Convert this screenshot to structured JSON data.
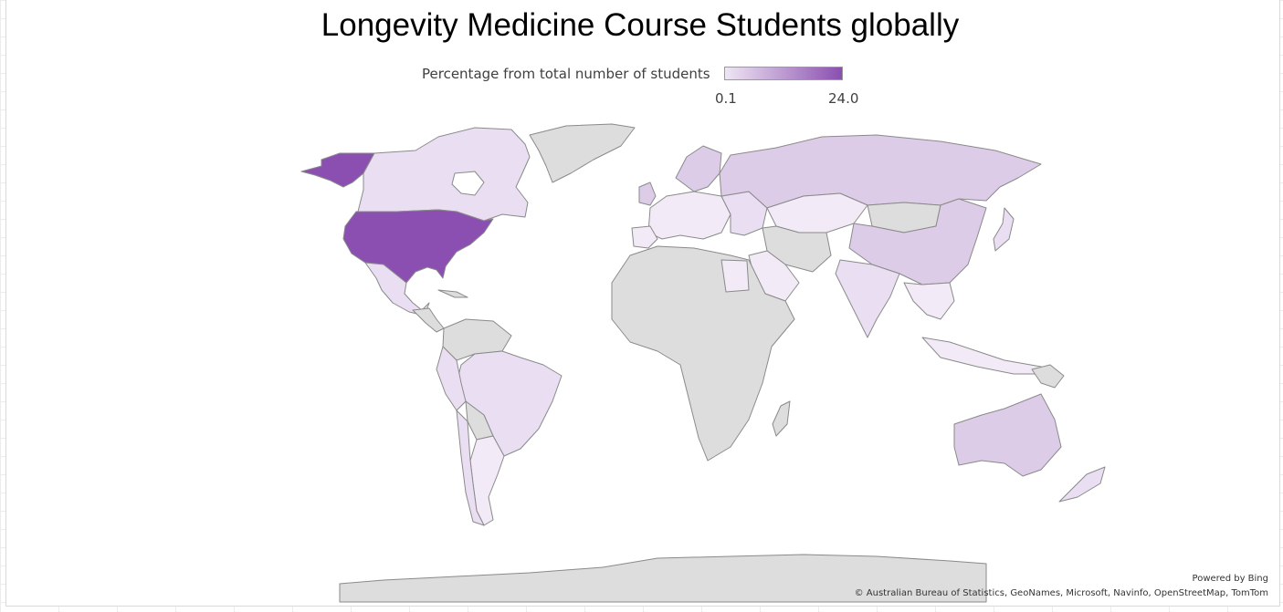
{
  "title": "Longevity Medicine Course Students globally",
  "legend": {
    "label": "Percentage from total number of students",
    "min": "0.1",
    "max": "24.0",
    "color_min": "#eee6f3",
    "color_max": "#8a4fb0"
  },
  "colors": {
    "no_data": "#dddddd",
    "border": "#8a8a8a",
    "high": "#8a4fb0",
    "mid": "#ddcce8",
    "low": "#eadff2",
    "lowest": "#f2ebf7"
  },
  "credits": {
    "powered_by": "Powered by Bing",
    "attribution": "© Australian Bureau of Statistics, GeoNames, Microsoft, Navinfo, OpenStreetMap, TomTom"
  }
}
